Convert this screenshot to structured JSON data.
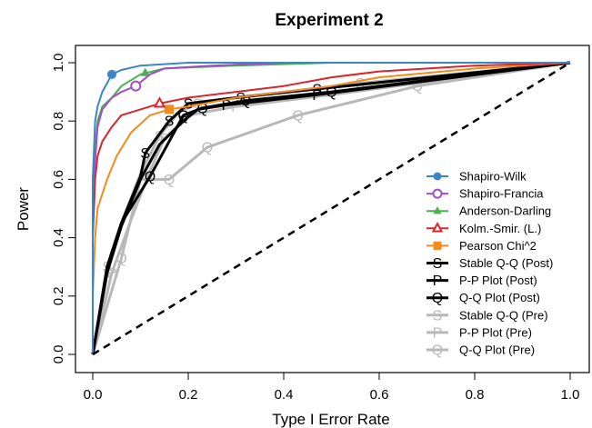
{
  "chart_data": {
    "type": "line",
    "title": "Experiment 2",
    "xlabel": "Type I Error Rate",
    "ylabel": "Power",
    "xlim": [
      0,
      1
    ],
    "ylim": [
      0,
      1
    ],
    "xticks": [
      "0.0",
      "0.2",
      "0.4",
      "0.6",
      "0.8",
      "1.0"
    ],
    "yticks": [
      "0.0",
      "0.2",
      "0.4",
      "0.6",
      "0.8",
      "1.0"
    ],
    "grid": false,
    "legend_position": "bottom-right",
    "reference_line": {
      "style": "dashed",
      "from": [
        0,
        0
      ],
      "to": [
        1,
        1
      ],
      "color": "#000000"
    },
    "series": [
      {
        "name": "Shapiro-Wilk",
        "color": "#3a86c8",
        "marker": "circle-filled",
        "width": 2,
        "points": [
          [
            0,
            0
          ],
          [
            0,
            0.6
          ],
          [
            0.005,
            0.8
          ],
          [
            0.01,
            0.85
          ],
          [
            0.02,
            0.9
          ],
          [
            0.03,
            0.93
          ],
          [
            0.04,
            0.96
          ],
          [
            0.06,
            0.975
          ],
          [
            0.1,
            0.99
          ],
          [
            0.2,
            1.0
          ],
          [
            1,
            1
          ]
        ],
        "markers": [
          [
            0.04,
            0.96
          ]
        ]
      },
      {
        "name": "Shapiro-Francia",
        "color": "#a14fc4",
        "marker": "circle-open",
        "width": 2,
        "points": [
          [
            0,
            0
          ],
          [
            0,
            0.55
          ],
          [
            0.01,
            0.78
          ],
          [
            0.02,
            0.84
          ],
          [
            0.04,
            0.88
          ],
          [
            0.06,
            0.9
          ],
          [
            0.09,
            0.92
          ],
          [
            0.12,
            0.96
          ],
          [
            0.15,
            0.98
          ],
          [
            0.25,
            0.99
          ],
          [
            0.4,
            1.0
          ],
          [
            1,
            1
          ]
        ],
        "markers": [
          [
            0.09,
            0.92
          ]
        ]
      },
      {
        "name": "Anderson-Darling",
        "color": "#4caf50",
        "marker": "triangle-filled",
        "width": 2,
        "points": [
          [
            0,
            0
          ],
          [
            0,
            0.6
          ],
          [
            0.005,
            0.7
          ],
          [
            0.01,
            0.8
          ],
          [
            0.02,
            0.85
          ],
          [
            0.04,
            0.88
          ],
          [
            0.06,
            0.92
          ],
          [
            0.08,
            0.94
          ],
          [
            0.1,
            0.96
          ],
          [
            0.15,
            0.98
          ],
          [
            0.3,
            0.99
          ],
          [
            0.5,
            1.0
          ],
          [
            1,
            1
          ]
        ],
        "markers": [
          [
            0.11,
            0.965
          ]
        ]
      },
      {
        "name": "Kolm.-Smir. (L.)",
        "color": "#d7262c",
        "marker": "triangle-open",
        "width": 2,
        "points": [
          [
            0,
            0
          ],
          [
            0,
            0.4
          ],
          [
            0.005,
            0.6
          ],
          [
            0.01,
            0.68
          ],
          [
            0.02,
            0.73
          ],
          [
            0.04,
            0.78
          ],
          [
            0.06,
            0.82
          ],
          [
            0.1,
            0.84
          ],
          [
            0.14,
            0.86
          ],
          [
            0.2,
            0.88
          ],
          [
            0.3,
            0.9
          ],
          [
            0.4,
            0.92
          ],
          [
            0.5,
            0.95
          ],
          [
            0.6,
            0.97
          ],
          [
            0.8,
            0.99
          ],
          [
            1,
            1
          ]
        ],
        "markers": [
          [
            0.14,
            0.86
          ]
        ]
      },
      {
        "name": "Pearson Chi^2",
        "color": "#f28a1c",
        "marker": "square-filled",
        "width": 2,
        "points": [
          [
            0,
            0
          ],
          [
            0,
            0.2
          ],
          [
            0.005,
            0.4
          ],
          [
            0.01,
            0.5
          ],
          [
            0.02,
            0.55
          ],
          [
            0.03,
            0.6
          ],
          [
            0.05,
            0.68
          ],
          [
            0.08,
            0.76
          ],
          [
            0.12,
            0.82
          ],
          [
            0.16,
            0.84
          ],
          [
            0.2,
            0.85
          ],
          [
            0.3,
            0.88
          ],
          [
            0.4,
            0.9
          ],
          [
            0.5,
            0.92
          ],
          [
            0.6,
            0.95
          ],
          [
            0.8,
            0.98
          ],
          [
            1,
            1
          ]
        ],
        "markers": [
          [
            0.16,
            0.84
          ]
        ]
      },
      {
        "name": "Stable Q-Q (Post)",
        "color": "#000000",
        "marker": "S",
        "width": 3,
        "points": [
          [
            0,
            0
          ],
          [
            0.03,
            0.3
          ],
          [
            0.06,
            0.45
          ],
          [
            0.1,
            0.61
          ],
          [
            0.11,
            0.69
          ],
          [
            0.16,
            0.8
          ],
          [
            0.2,
            0.86
          ],
          [
            0.3,
            0.88
          ],
          [
            0.47,
            0.91
          ],
          [
            1,
            1
          ]
        ],
        "markers": [
          [
            0.11,
            0.69
          ],
          [
            0.16,
            0.8
          ],
          [
            0.2,
            0.86
          ],
          [
            0.31,
            0.88
          ],
          [
            0.47,
            0.91
          ]
        ]
      },
      {
        "name": "P-P Plot (Post)",
        "color": "#000000",
        "marker": "P",
        "width": 3,
        "points": [
          [
            0,
            0
          ],
          [
            0.03,
            0.28
          ],
          [
            0.06,
            0.44
          ],
          [
            0.1,
            0.6
          ],
          [
            0.14,
            0.72
          ],
          [
            0.19,
            0.8
          ],
          [
            0.22,
            0.84
          ],
          [
            0.28,
            0.855
          ],
          [
            0.47,
            0.89
          ],
          [
            1,
            1
          ]
        ],
        "markers": [
          [
            0.19,
            0.8
          ],
          [
            0.28,
            0.855
          ],
          [
            0.47,
            0.89
          ]
        ]
      },
      {
        "name": "Q-Q Plot (Post)",
        "color": "#000000",
        "marker": "Q",
        "width": 3,
        "points": [
          [
            0,
            0
          ],
          [
            0.03,
            0.3
          ],
          [
            0.06,
            0.45
          ],
          [
            0.12,
            0.61
          ],
          [
            0.19,
            0.82
          ],
          [
            0.23,
            0.845
          ],
          [
            0.32,
            0.87
          ],
          [
            0.5,
            0.9
          ],
          [
            1,
            1
          ]
        ],
        "markers": [
          [
            0.12,
            0.61
          ],
          [
            0.19,
            0.82
          ],
          [
            0.23,
            0.845
          ],
          [
            0.32,
            0.87
          ],
          [
            0.5,
            0.9
          ]
        ]
      },
      {
        "name": "Stable Q-Q (Pre)",
        "color": "#b8b8b8",
        "marker": "S",
        "width": 3,
        "points": [
          [
            0,
            0
          ],
          [
            0.03,
            0.3
          ],
          [
            0.06,
            0.45
          ],
          [
            0.1,
            0.62
          ],
          [
            0.14,
            0.75
          ],
          [
            0.18,
            0.83
          ],
          [
            0.22,
            0.86
          ],
          [
            0.3,
            0.88
          ],
          [
            0.56,
            0.93
          ],
          [
            1,
            1
          ]
        ],
        "markers": [
          [
            0.03,
            0.3
          ],
          [
            0.14,
            0.75
          ],
          [
            0.22,
            0.86
          ],
          [
            0.56,
            0.93
          ]
        ]
      },
      {
        "name": "P-P Plot (Pre)",
        "color": "#b8b8b8",
        "marker": "P",
        "width": 3,
        "points": [
          [
            0,
            0
          ],
          [
            0.04,
            0.28
          ],
          [
            0.08,
            0.46
          ],
          [
            0.12,
            0.63
          ],
          [
            0.15,
            0.74
          ],
          [
            0.2,
            0.82
          ],
          [
            0.3,
            0.85
          ],
          [
            0.5,
            0.89
          ],
          [
            1,
            1
          ]
        ],
        "markers": [
          [
            0.04,
            0.28
          ],
          [
            0.15,
            0.74
          ],
          [
            0.3,
            0.85
          ]
        ]
      },
      {
        "name": "Q-Q Plot (Pre)",
        "color": "#b8b8b8",
        "marker": "Q",
        "width": 3,
        "points": [
          [
            0,
            0
          ],
          [
            0.06,
            0.33
          ],
          [
            0.1,
            0.6
          ],
          [
            0.16,
            0.6
          ],
          [
            0.24,
            0.71
          ],
          [
            0.43,
            0.82
          ],
          [
            0.68,
            0.92
          ],
          [
            1,
            1
          ]
        ],
        "markers": [
          [
            0.06,
            0.33
          ],
          [
            0.16,
            0.6
          ],
          [
            0.24,
            0.71
          ],
          [
            0.43,
            0.82
          ],
          [
            0.68,
            0.92
          ]
        ]
      }
    ]
  }
}
